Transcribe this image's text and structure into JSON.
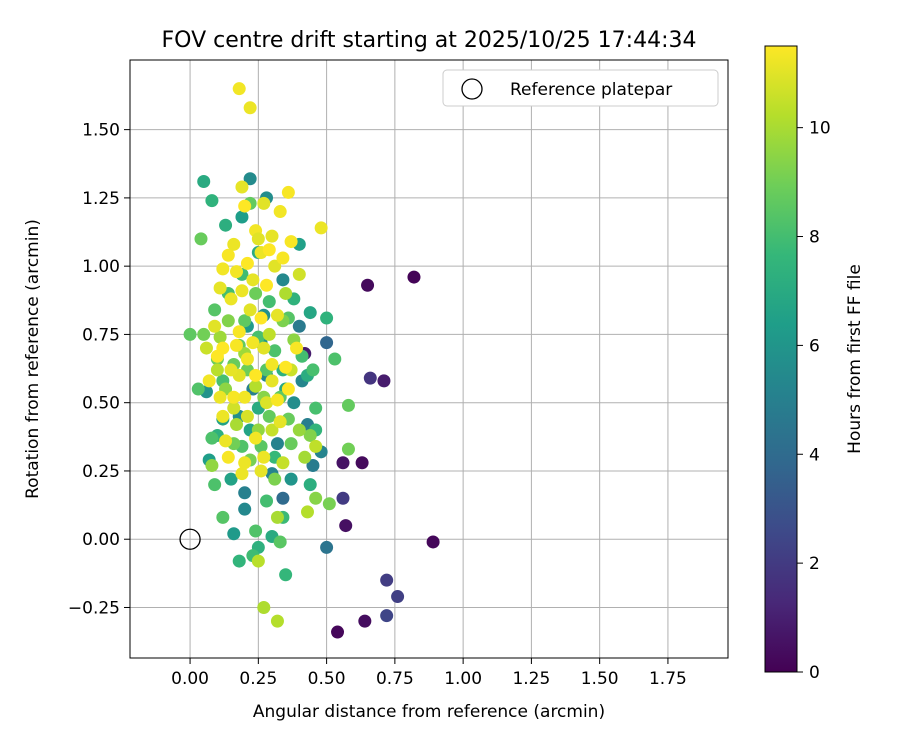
{
  "chart_data": {
    "type": "scatter",
    "title": "FOV centre drift starting at 2025/10/25 17:44:34",
    "xlabel": "Angular distance from reference (arcmin)",
    "ylabel": "Rotation from reference (arcmin)",
    "xlim": [
      -0.22,
      1.97
    ],
    "ylim": [
      -0.435,
      1.755
    ],
    "x_ticks": [
      0.0,
      0.25,
      0.5,
      0.75,
      1.0,
      1.25,
      1.5,
      1.75
    ],
    "x_tick_labels": [
      "0.00",
      "0.25",
      "0.50",
      "0.75",
      "1.00",
      "1.25",
      "1.50",
      "1.75"
    ],
    "y_ticks": [
      -0.25,
      0.0,
      0.25,
      0.5,
      0.75,
      1.0,
      1.25,
      1.5
    ],
    "y_tick_labels": [
      "−0.25",
      "0.00",
      "0.25",
      "0.50",
      "0.75",
      "1.00",
      "1.25",
      "1.50"
    ],
    "grid": true,
    "legend": {
      "position": "top-right",
      "entries": [
        "Reference platepar"
      ]
    },
    "reference_point": {
      "x": 0.0,
      "y": 0.0,
      "label": "Reference platepar"
    },
    "colorbar": {
      "label": "Hours from first FF file",
      "min": 0,
      "max": 11.5,
      "ticks": [
        0,
        2,
        4,
        6,
        8,
        10
      ],
      "tick_labels": [
        "0",
        "2",
        "4",
        "6",
        "8",
        "10"
      ],
      "colormap": "viridis",
      "colors": [
        "#440154",
        "#482878",
        "#3e4989",
        "#31688e",
        "#26828e",
        "#1f9e89",
        "#35b779",
        "#6ece58",
        "#b5de2b",
        "#fde725"
      ]
    },
    "points_columns": [
      "x",
      "y",
      "hours"
    ],
    "points": [
      [
        0.82,
        0.96,
        0.1
      ],
      [
        0.65,
        0.93,
        0.3
      ],
      [
        0.89,
        -0.01,
        0.2
      ],
      [
        0.54,
        -0.34,
        0.2
      ],
      [
        0.64,
        -0.3,
        0.4
      ],
      [
        0.57,
        0.05,
        0.5
      ],
      [
        0.63,
        0.28,
        0.3
      ],
      [
        0.56,
        0.28,
        0.6
      ],
      [
        0.71,
        0.58,
        0.9
      ],
      [
        0.66,
        0.59,
        1.8
      ],
      [
        0.72,
        -0.15,
        2.1
      ],
      [
        0.76,
        -0.21,
        2.2
      ],
      [
        0.72,
        -0.28,
        2.4
      ],
      [
        0.56,
        0.15,
        2.0
      ],
      [
        0.42,
        0.68,
        0.9
      ],
      [
        0.5,
        0.72,
        3.8
      ],
      [
        0.5,
        -0.03,
        4.4
      ],
      [
        0.34,
        0.15,
        4.0
      ],
      [
        0.45,
        0.27,
        4.8
      ],
      [
        0.48,
        0.32,
        5.2
      ],
      [
        0.2,
        0.11,
        5.4
      ],
      [
        0.16,
        0.02,
        6.2
      ],
      [
        0.2,
        0.17,
        5.0
      ],
      [
        0.3,
        0.24,
        5.2
      ],
      [
        0.23,
        0.55,
        5.0
      ],
      [
        0.18,
        0.45,
        5.7
      ],
      [
        0.28,
        0.6,
        5.3
      ],
      [
        0.32,
        0.35,
        5.1
      ],
      [
        0.38,
        0.5,
        5.6
      ],
      [
        0.43,
        0.42,
        4.9
      ],
      [
        0.06,
        0.54,
        5.9
      ],
      [
        0.27,
        0.82,
        5.8
      ],
      [
        0.22,
        1.32,
        5.5
      ],
      [
        0.28,
        1.25,
        5.6
      ],
      [
        0.19,
        1.18,
        6.4
      ],
      [
        0.34,
        0.95,
        5.4
      ],
      [
        0.4,
        0.78,
        4.7
      ],
      [
        0.41,
        0.58,
        5.3
      ],
      [
        0.26,
        0.72,
        6.0
      ],
      [
        0.12,
        0.44,
        6.6
      ],
      [
        0.22,
        0.4,
        6.7
      ],
      [
        0.35,
        0.55,
        6.9
      ],
      [
        0.25,
        0.48,
        7.0
      ],
      [
        0.4,
        1.08,
        6.5
      ],
      [
        0.05,
        1.31,
        7.0
      ],
      [
        0.13,
        1.15,
        7.2
      ],
      [
        0.08,
        1.24,
        7.4
      ],
      [
        0.25,
        1.05,
        7.0
      ],
      [
        0.34,
        0.62,
        7.3
      ],
      [
        0.43,
        0.6,
        7.1
      ],
      [
        0.44,
        0.2,
        7.2
      ],
      [
        0.34,
        0.08,
        7.8
      ],
      [
        0.46,
        0.4,
        7.5
      ],
      [
        0.5,
        0.81,
        7.4
      ],
      [
        0.18,
        -0.08,
        7.5
      ],
      [
        0.35,
        -0.13,
        7.6
      ],
      [
        0.25,
        -0.03,
        7.3
      ],
      [
        0.23,
        -0.06,
        7.9
      ],
      [
        0.3,
        0.01,
        7.0
      ],
      [
        0.07,
        0.29,
        6.4
      ],
      [
        0.15,
        0.22,
        6.6
      ],
      [
        0.44,
        0.83,
        6.8
      ],
      [
        0.21,
        0.78,
        6.2
      ],
      [
        0.38,
        0.88,
        7.4
      ],
      [
        0.31,
        0.3,
        7.7
      ],
      [
        0.37,
        0.22,
        6.0
      ],
      [
        0.1,
        0.38,
        7.3
      ],
      [
        0.28,
        0.14,
        8.0
      ],
      [
        0.19,
        0.97,
        7.9
      ],
      [
        0.09,
        0.2,
        8.2
      ],
      [
        0.12,
        0.08,
        8.4
      ],
      [
        0.24,
        0.03,
        8.3
      ],
      [
        0.33,
        -0.01,
        8.5
      ],
      [
        0.53,
        0.66,
        8.2
      ],
      [
        0.58,
        0.49,
        8.7
      ],
      [
        0.58,
        0.33,
        9.0
      ],
      [
        0.51,
        0.13,
        9.1
      ],
      [
        0.46,
        0.15,
        9.4
      ],
      [
        0.04,
        1.1,
        8.8
      ],
      [
        0.0,
        0.75,
        8.6
      ],
      [
        0.03,
        0.55,
        8.3
      ],
      [
        0.36,
        0.81,
        8.4
      ],
      [
        0.29,
        0.87,
        8.0
      ],
      [
        0.46,
        0.48,
        8.1
      ],
      [
        0.2,
        0.8,
        8.6
      ],
      [
        0.16,
        0.64,
        8.8
      ],
      [
        0.22,
        1.23,
        8.7
      ],
      [
        0.1,
        0.66,
        8.9
      ],
      [
        0.09,
        0.84,
        8.4
      ],
      [
        0.14,
        0.9,
        8.0
      ],
      [
        0.26,
        0.34,
        8.5
      ],
      [
        0.36,
        0.44,
        8.8
      ],
      [
        0.31,
        0.69,
        8.2
      ],
      [
        0.19,
        0.34,
        8.3
      ],
      [
        0.12,
        0.58,
        8.1
      ],
      [
        0.29,
        0.45,
        8.7
      ],
      [
        0.41,
        0.67,
        8.0
      ],
      [
        0.33,
        0.52,
        8.6
      ],
      [
        0.24,
        0.9,
        8.9
      ],
      [
        0.16,
        0.35,
        9.0
      ],
      [
        0.28,
        0.62,
        8.4
      ],
      [
        0.45,
        0.62,
        8.1
      ],
      [
        0.18,
        0.71,
        8.7
      ],
      [
        0.37,
        0.35,
        8.8
      ],
      [
        0.08,
        0.37,
        8.2
      ],
      [
        0.25,
        0.74,
        8.1
      ],
      [
        0.44,
        0.38,
        9.3
      ],
      [
        0.21,
        0.62,
        8.9
      ],
      [
        0.05,
        0.75,
        9.0
      ],
      [
        0.34,
        0.8,
        9.2
      ],
      [
        0.13,
        0.55,
        9.5
      ],
      [
        0.22,
        0.29,
        9.1
      ],
      [
        0.4,
        0.4,
        9.7
      ],
      [
        0.27,
        0.52,
        9.4
      ],
      [
        0.08,
        0.27,
        9.6
      ],
      [
        0.31,
        0.22,
        9.2
      ],
      [
        0.11,
        0.74,
        9.8
      ],
      [
        0.38,
        0.73,
        9.5
      ],
      [
        0.17,
        0.42,
        10.0
      ],
      [
        0.42,
        0.3,
        9.9
      ],
      [
        0.14,
        0.8,
        9.3
      ],
      [
        0.25,
        0.4,
        9.6
      ],
      [
        0.2,
        0.68,
        9.8
      ],
      [
        0.35,
        0.9,
        10.1
      ],
      [
        0.43,
        0.1,
        10.2
      ],
      [
        0.32,
        0.08,
        10.0
      ],
      [
        0.25,
        -0.08,
        10.3
      ],
      [
        0.27,
        -0.25,
        10.1
      ],
      [
        0.32,
        -0.3,
        10.2
      ],
      [
        0.46,
        0.34,
        10.4
      ],
      [
        0.3,
        0.4,
        10.5
      ],
      [
        0.24,
        0.56,
        10.2
      ],
      [
        0.37,
        0.62,
        10.6
      ],
      [
        0.1,
        0.62,
        10.3
      ],
      [
        0.16,
        0.48,
        10.7
      ],
      [
        0.29,
        0.75,
        10.4
      ],
      [
        0.21,
        0.45,
        10.8
      ],
      [
        0.34,
        0.28,
        10.5
      ],
      [
        0.06,
        0.7,
        10.6
      ],
      [
        0.4,
        0.97,
        10.7
      ],
      [
        0.28,
        0.5,
        10.9
      ],
      [
        0.18,
        0.6,
        11.0
      ],
      [
        0.12,
        0.45,
        11.2
      ],
      [
        0.22,
        0.84,
        11.0
      ],
      [
        0.3,
        0.64,
        11.3
      ],
      [
        0.26,
        0.25,
        11.1
      ],
      [
        0.14,
        0.3,
        11.4
      ],
      [
        0.19,
        0.24,
        11.2
      ],
      [
        0.36,
        0.55,
        11.5
      ],
      [
        0.09,
        0.78,
        11.0
      ],
      [
        0.23,
        0.72,
        11.3
      ],
      [
        0.33,
        0.43,
        11.1
      ],
      [
        0.16,
        0.52,
        11.4
      ],
      [
        0.27,
        0.3,
        11.2
      ],
      [
        0.12,
        0.7,
        11.5
      ],
      [
        0.2,
        0.52,
        11.3
      ],
      [
        0.39,
        0.7,
        11.4
      ],
      [
        0.15,
        0.88,
        11.2
      ],
      [
        0.32,
        0.82,
        11.1
      ],
      [
        0.24,
        0.6,
        11.5
      ],
      [
        0.18,
        1.65,
        11.3
      ],
      [
        0.22,
        1.58,
        11.2
      ],
      [
        0.19,
        1.29,
        11.1
      ],
      [
        0.36,
        1.27,
        11.4
      ],
      [
        0.33,
        1.2,
        11.3
      ],
      [
        0.48,
        1.14,
        11.2
      ],
      [
        0.27,
        1.23,
        11.0
      ],
      [
        0.2,
        1.22,
        11.5
      ],
      [
        0.3,
        1.11,
        11.1
      ],
      [
        0.24,
        1.13,
        11.3
      ],
      [
        0.37,
        1.09,
        11.4
      ],
      [
        0.26,
        1.05,
        11.2
      ],
      [
        0.21,
        1.01,
        11.5
      ],
      [
        0.31,
        1.0,
        11.0
      ],
      [
        0.17,
        0.98,
        11.3
      ],
      [
        0.14,
        1.04,
        11.4
      ],
      [
        0.23,
        0.95,
        11.1
      ],
      [
        0.28,
        0.93,
        11.5
      ],
      [
        0.19,
        0.91,
        11.2
      ],
      [
        0.12,
        0.99,
        11.3
      ],
      [
        0.25,
        1.1,
        11.0
      ],
      [
        0.34,
        1.03,
        11.4
      ],
      [
        0.11,
        0.92,
        11.1
      ],
      [
        0.29,
        1.06,
        11.5
      ],
      [
        0.16,
        1.08,
        11.2
      ],
      [
        0.07,
        0.58,
        11.3
      ],
      [
        0.18,
        0.76,
        11.4
      ],
      [
        0.1,
        0.67,
        11.5
      ],
      [
        0.15,
        0.62,
        11.1
      ],
      [
        0.24,
        0.37,
        11.3
      ],
      [
        0.2,
        0.28,
        11.2
      ],
      [
        0.32,
        0.51,
        11.4
      ],
      [
        0.27,
        0.7,
        11.0
      ],
      [
        0.35,
        0.63,
        11.5
      ],
      [
        0.13,
        0.36,
        11.2
      ],
      [
        0.21,
        0.66,
        11.3
      ],
      [
        0.3,
        0.58,
        11.1
      ],
      [
        0.17,
        0.71,
        11.4
      ],
      [
        0.26,
        0.81,
        11.5
      ],
      [
        0.11,
        0.52,
        11.2
      ]
    ]
  }
}
